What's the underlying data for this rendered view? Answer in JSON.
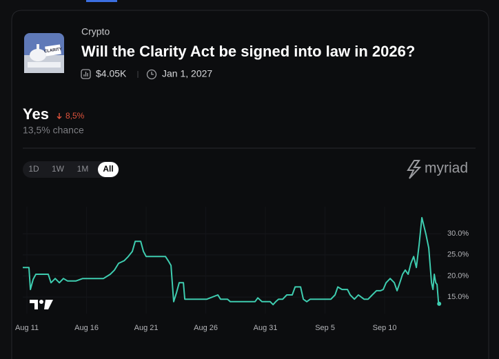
{
  "market": {
    "category": "Crypto",
    "question": "Will the Clarity Act be signed into law in 2026?",
    "volume": "$4.05K",
    "end_date": "Jan 1, 2027",
    "outcome": "Yes",
    "change": "8,5%",
    "chance": "13,5% chance",
    "ranges": [
      "1D",
      "1W",
      "1M",
      "All"
    ],
    "active_range": "All",
    "brand": "myriad"
  },
  "chart_data": {
    "type": "line",
    "color": "#3ecdb0",
    "x": [
      10.65,
      11.17,
      11.29,
      11.52,
      11.75,
      12.79,
      13.02,
      13.37,
      13.72,
      14.06,
      14.41,
      15.1,
      15.68,
      16.26,
      17.42,
      17.99,
      18.34,
      18.69,
      19.15,
      19.5,
      19.84,
      20.08,
      20.54,
      20.77,
      21.0,
      22.62,
      22.85,
      23.08,
      23.31,
      23.54,
      23.77,
      24.12,
      24.24,
      26.09,
      27.01,
      27.24,
      27.82,
      28.05,
      30.13,
      30.36,
      30.71,
      31.4,
      31.64,
      31.87,
      32.1,
      32.45,
      32.79,
      33.25,
      33.49,
      33.95,
      34.18,
      34.47,
      34.76,
      36.49,
      36.84,
      37.07,
      37.42,
      37.88,
      38.11,
      38.46,
      38.8,
      39.27,
      39.61,
      39.96,
      40.31,
      40.65,
      40.88,
      41.12,
      41.46,
      41.81,
      42.04,
      42.27,
      42.5,
      42.73,
      42.97,
      43.2,
      43.43,
      43.66,
      43.89,
      44.12,
      44.47,
      44.7,
      44.93,
      45.05,
      45.16,
      45.28,
      45.39,
      45.51,
      45.57
    ],
    "values": [
      22.0,
      22.0,
      16.8,
      19.2,
      20.4,
      20.4,
      18.4,
      19.4,
      18.4,
      19.4,
      18.8,
      18.8,
      19.4,
      19.4,
      19.4,
      20.4,
      21.4,
      23.0,
      23.6,
      24.6,
      25.8,
      28.2,
      28.2,
      25.8,
      24.6,
      24.6,
      23.6,
      22.5,
      13.9,
      16.0,
      18.4,
      18.4,
      14.5,
      14.5,
      15.5,
      14.5,
      14.5,
      13.9,
      13.9,
      14.8,
      13.9,
      13.9,
      13.2,
      13.9,
      14.5,
      14.5,
      15.5,
      15.5,
      17.4,
      17.4,
      14.5,
      13.9,
      14.5,
      14.5,
      15.5,
      17.4,
      16.8,
      16.8,
      15.5,
      14.5,
      15.5,
      14.5,
      14.5,
      15.5,
      16.5,
      16.5,
      16.8,
      18.4,
      19.4,
      18.4,
      16.5,
      18.4,
      20.4,
      21.4,
      20.4,
      23.0,
      24.6,
      22.0,
      27.4,
      33.8,
      29.8,
      26.6,
      18.4,
      16.8,
      20.4,
      18.4,
      18.0,
      13.9,
      13.4
    ],
    "xlim": [
      10.65,
      46.6
    ],
    "ylim": [
      11.1,
      36.4
    ],
    "xticks": [
      {
        "value": 11,
        "label": "Aug 11"
      },
      {
        "value": 16,
        "label": "Aug 16"
      },
      {
        "value": 21,
        "label": "Aug 21"
      },
      {
        "value": 26,
        "label": "Aug 26"
      },
      {
        "value": 31,
        "label": "Aug 31"
      },
      {
        "value": 36,
        "label": "Sep 5"
      },
      {
        "value": 41,
        "label": "Sep 10"
      }
    ],
    "yticks": [
      {
        "value": 15,
        "label": "15.0%"
      },
      {
        "value": 20,
        "label": "20.0%"
      },
      {
        "value": 25,
        "label": "25.0%"
      },
      {
        "value": 30,
        "label": "30.0%"
      }
    ],
    "grid": true
  }
}
